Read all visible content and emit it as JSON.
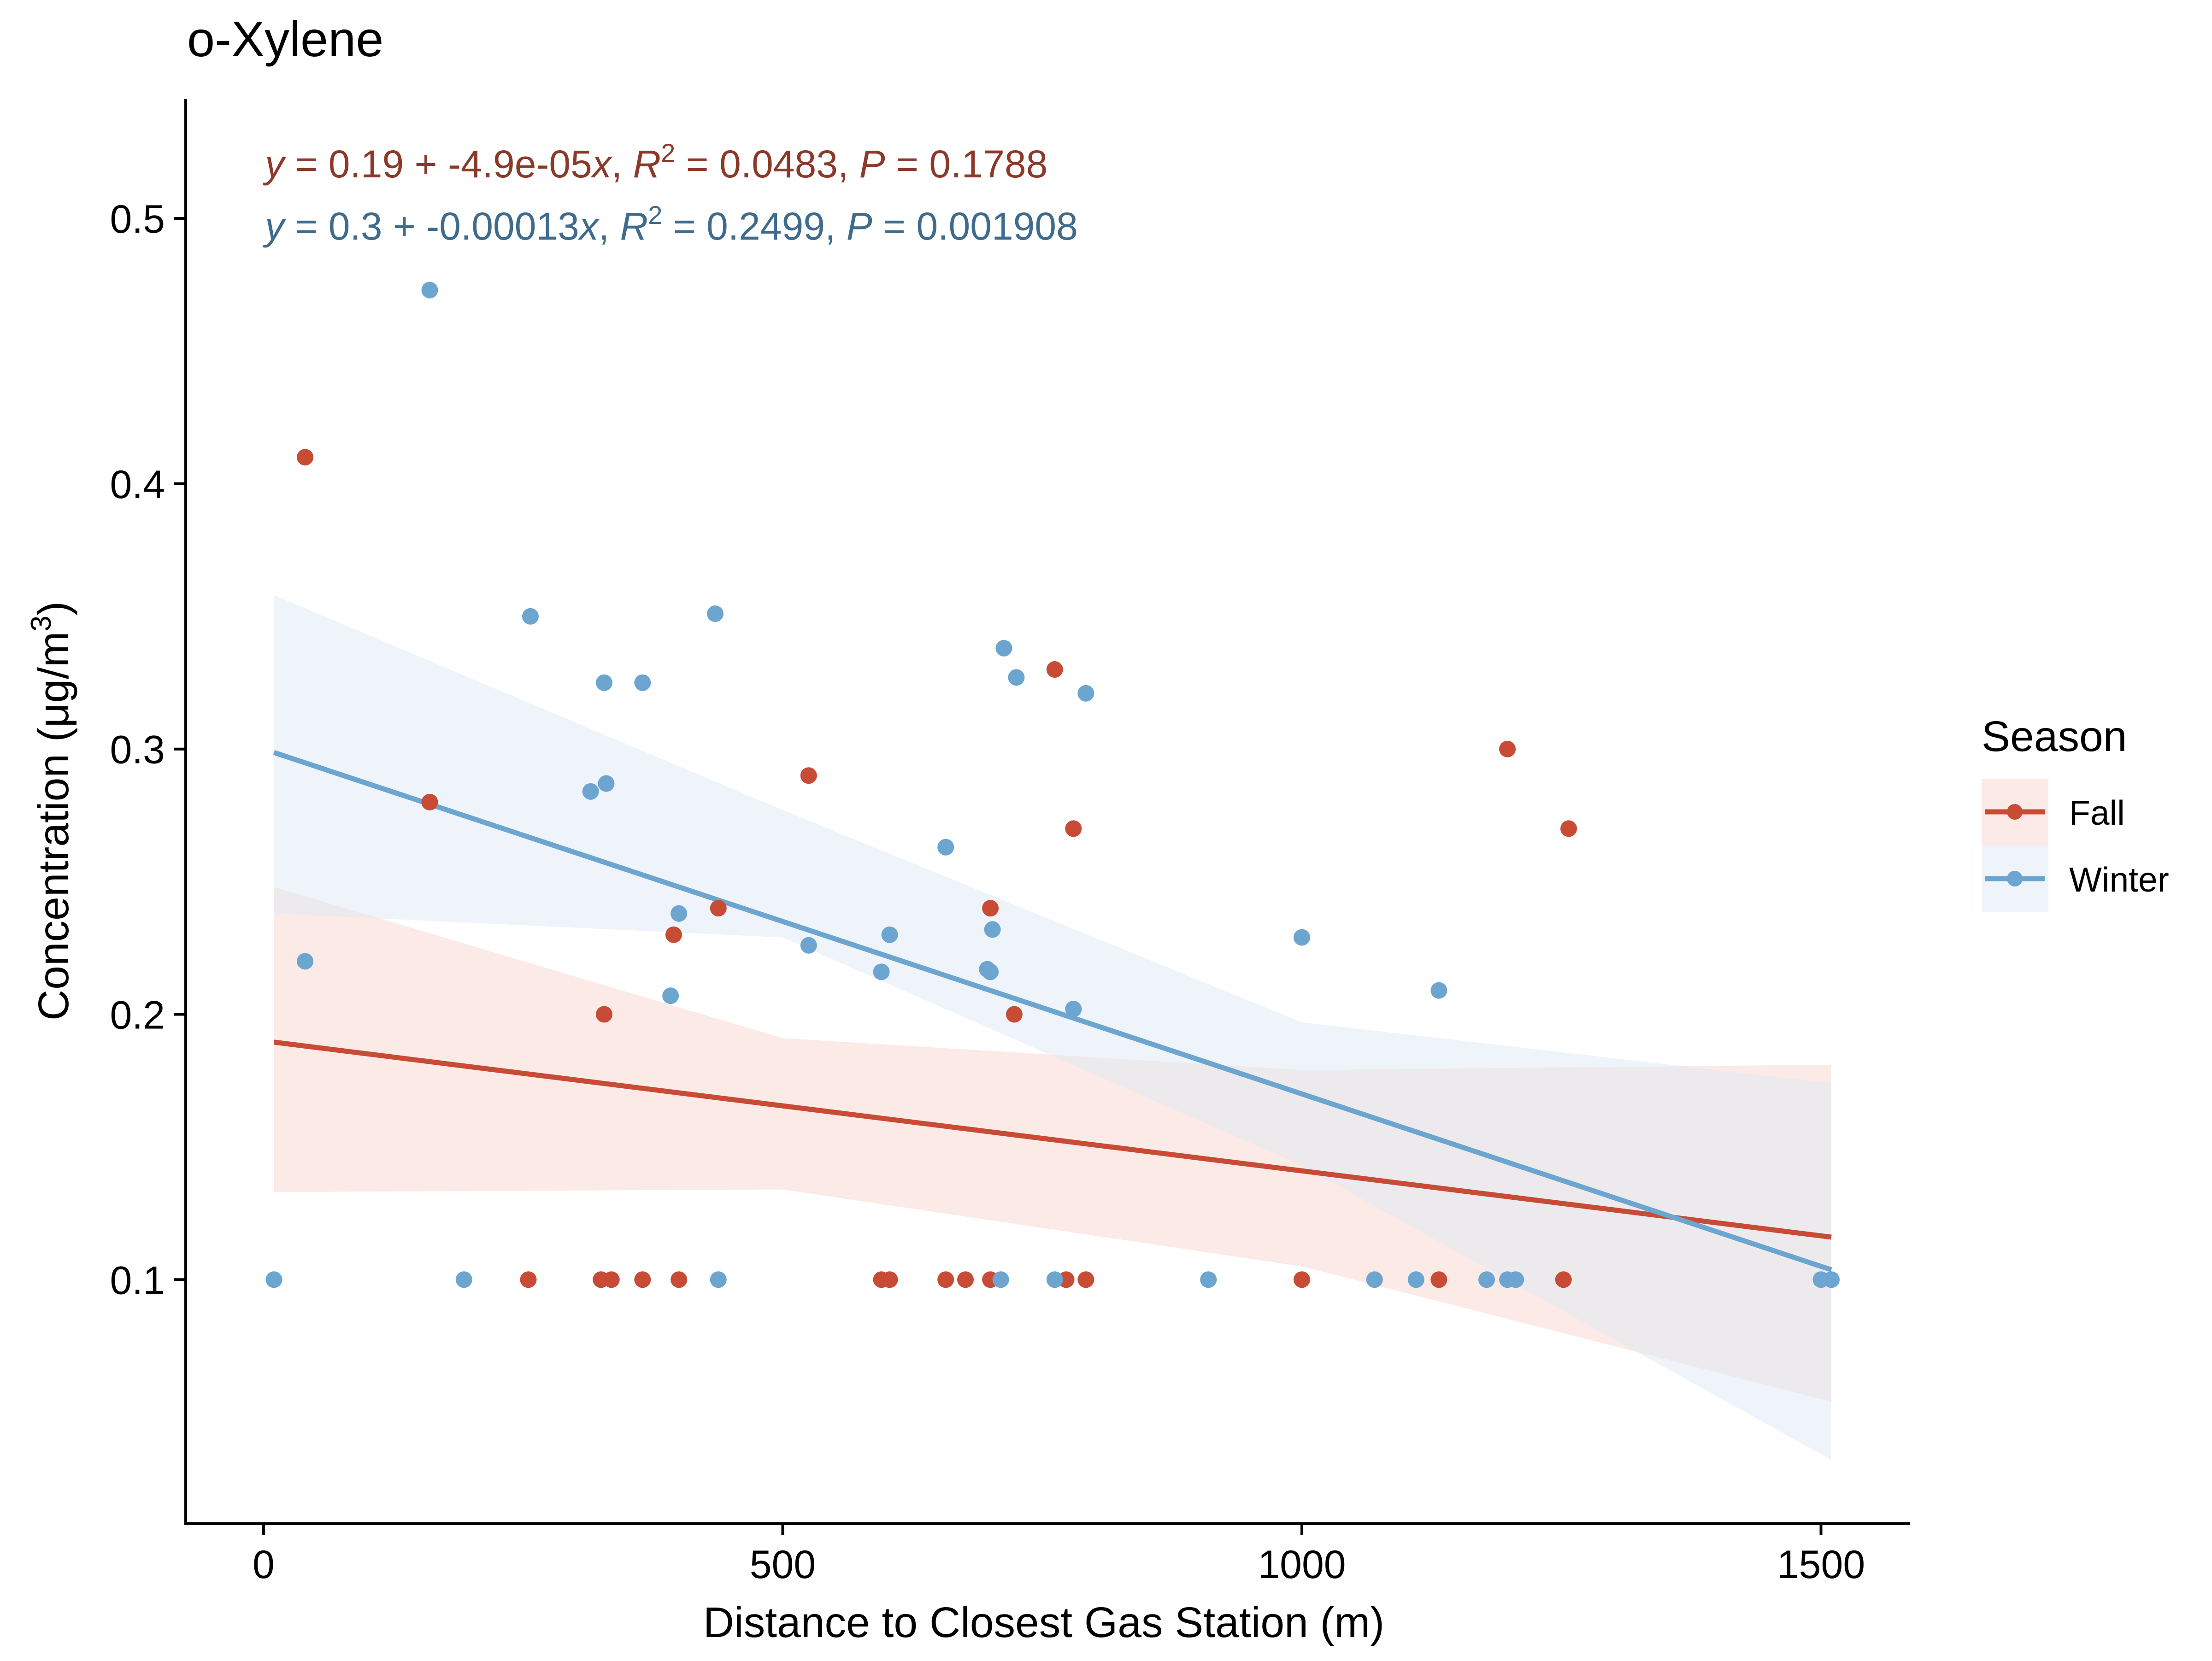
{
  "chart_data": {
    "type": "scatter",
    "title": "o-Xylene",
    "xlabel": "Distance to Closest Gas Station (m)",
    "ylabel_main": "Concentration (μg/m",
    "ylabel_sup": "3",
    "ylabel_close": ")",
    "xlim": [
      -75,
      1585
    ],
    "ylim": [
      0.008,
      0.545
    ],
    "xticks": [
      {
        "value": 0,
        "label": "0"
      },
      {
        "value": 500,
        "label": "500"
      },
      {
        "value": 1000,
        "label": "1000"
      },
      {
        "value": 1500,
        "label": "1500"
      }
    ],
    "yticks": [
      {
        "value": 0.1,
        "label": "0.1"
      },
      {
        "value": 0.2,
        "label": "0.2"
      },
      {
        "value": 0.3,
        "label": "0.3"
      },
      {
        "value": 0.4,
        "label": "0.4"
      },
      {
        "value": 0.5,
        "label": "0.5"
      }
    ],
    "grid": false,
    "legend": {
      "title": "Season",
      "position": "right",
      "entries": [
        "Fall",
        "Winter"
      ]
    },
    "series": [
      {
        "name": "Fall",
        "color": "#C84B36",
        "fill": "#F9D6D0",
        "points": [
          [
            40,
            0.41
          ],
          [
            160,
            0.28
          ],
          [
            255,
            0.1
          ],
          [
            325,
            0.1
          ],
          [
            328,
            0.2
          ],
          [
            335,
            0.1
          ],
          [
            365,
            0.1
          ],
          [
            395,
            0.23
          ],
          [
            400,
            0.1
          ],
          [
            438,
            0.24
          ],
          [
            525,
            0.29
          ],
          [
            595,
            0.1
          ],
          [
            603,
            0.1
          ],
          [
            657,
            0.1
          ],
          [
            676,
            0.1
          ],
          [
            700,
            0.24
          ],
          [
            700,
            0.1
          ],
          [
            723,
            0.2
          ],
          [
            762,
            0.33
          ],
          [
            773,
            0.1
          ],
          [
            780,
            0.27
          ],
          [
            792,
            0.1
          ],
          [
            1000,
            0.1
          ],
          [
            1132,
            0.1
          ],
          [
            1198,
            0.3
          ],
          [
            1252,
            0.1
          ],
          [
            1257,
            0.27
          ]
        ],
        "fit": {
          "intercept": 0.19,
          "slope": -4.9e-05,
          "x_range": [
            10,
            1510
          ]
        },
        "band": {
          "x": [
            10,
            500,
            1000,
            1510
          ],
          "lower": [
            0.133,
            0.134,
            0.105,
            0.054
          ],
          "upper": [
            0.248,
            0.191,
            0.179,
            0.181
          ]
        },
        "annotation": {
          "eq_y": "y",
          "eq_rest": " = 0.19 + -4.9e-05",
          "eq_x": "x",
          "sep1": ",  ",
          "r": "R",
          "r_sup": "2",
          "r_val": " = 0.0483,  ",
          "p": "P",
          "p_val": " = 0.1788"
        }
      },
      {
        "name": "Winter",
        "color": "#6BA5D0",
        "fill": "#DDE9F3",
        "points": [
          [
            10,
            0.1
          ],
          [
            40,
            0.22
          ],
          [
            160,
            0.473
          ],
          [
            193,
            0.1
          ],
          [
            257,
            0.35
          ],
          [
            315,
            0.284
          ],
          [
            328,
            0.325
          ],
          [
            330,
            0.287
          ],
          [
            365,
            0.325
          ],
          [
            392,
            0.207
          ],
          [
            400,
            0.238
          ],
          [
            435,
            0.351
          ],
          [
            438,
            0.1
          ],
          [
            525,
            0.226
          ],
          [
            595,
            0.216
          ],
          [
            603,
            0.23
          ],
          [
            657,
            0.263
          ],
          [
            697,
            0.217
          ],
          [
            700,
            0.216
          ],
          [
            702,
            0.232
          ],
          [
            710,
            0.1
          ],
          [
            713,
            0.338
          ],
          [
            725,
            0.327
          ],
          [
            762,
            0.1
          ],
          [
            780,
            0.202
          ],
          [
            792,
            0.321
          ],
          [
            910,
            0.1
          ],
          [
            1000,
            0.229
          ],
          [
            1070,
            0.1
          ],
          [
            1110,
            0.1
          ],
          [
            1132,
            0.209
          ],
          [
            1178,
            0.1
          ],
          [
            1198,
            0.1
          ],
          [
            1206,
            0.1
          ],
          [
            1500,
            0.1
          ],
          [
            1510,
            0.1
          ]
        ],
        "fit": {
          "intercept": 0.3,
          "slope": -0.00013,
          "x_range": [
            10,
            1510
          ]
        },
        "band": {
          "x": [
            10,
            500,
            1000,
            1510
          ],
          "lower": [
            0.238,
            0.229,
            0.143,
            0.032
          ],
          "upper": [
            0.358,
            0.277,
            0.197,
            0.174
          ]
        },
        "annotation": {
          "eq_y": "y",
          "eq_rest": " = 0.3 + -0.00013",
          "eq_x": "x",
          "sep1": ",  ",
          "r": "R",
          "r_sup": "2",
          "r_val": " = 0.2499,  ",
          "p": "P",
          "p_val": " = 0.001908"
        }
      }
    ]
  }
}
